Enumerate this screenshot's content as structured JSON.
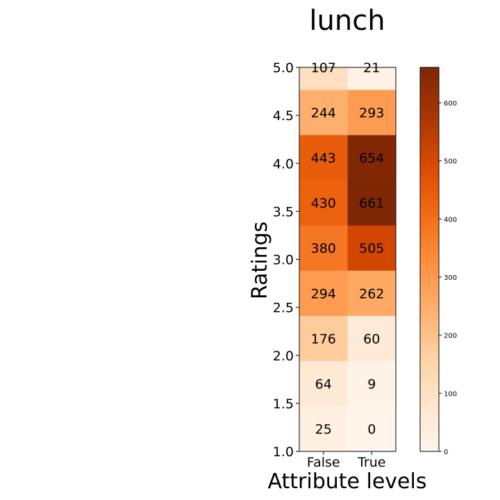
{
  "chart_data": {
    "type": "heatmap",
    "title": "lunch",
    "xlabel": "Attribute levels",
    "ylabel": "Ratings",
    "x_categories": [
      "False",
      "True"
    ],
    "y_ticks": [
      "1.0",
      "1.5",
      "2.0",
      "2.5",
      "3.0",
      "3.5",
      "4.0",
      "4.5",
      "5.0"
    ],
    "rows": [
      {
        "rating": 5.0,
        "values": [
          107,
          21
        ]
      },
      {
        "rating": 4.5,
        "values": [
          244,
          293
        ]
      },
      {
        "rating": 4.0,
        "values": [
          443,
          654
        ]
      },
      {
        "rating": 3.5,
        "values": [
          430,
          661
        ]
      },
      {
        "rating": 3.0,
        "values": [
          380,
          505
        ]
      },
      {
        "rating": 2.5,
        "values": [
          294,
          262
        ]
      },
      {
        "rating": 2.0,
        "values": [
          176,
          60
        ]
      },
      {
        "rating": 1.5,
        "values": [
          64,
          9
        ]
      },
      {
        "rating": 1.0,
        "values": [
          25,
          0
        ]
      }
    ],
    "colorbar": {
      "colormap": "Oranges",
      "min": 0,
      "max": 661,
      "ticks": [
        0,
        100,
        200,
        300,
        400,
        500,
        600
      ]
    }
  }
}
